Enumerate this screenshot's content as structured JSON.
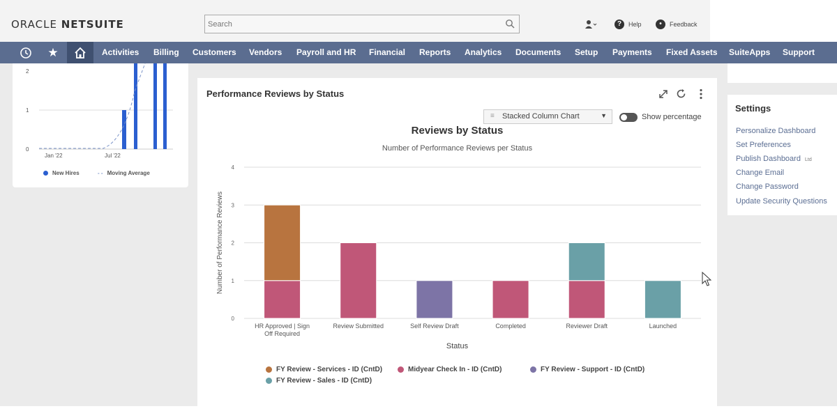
{
  "header": {
    "logo_oracle": "ORACLE",
    "logo_netsuite": "NETSUITE",
    "search_placeholder": "Search",
    "help_label": "Help",
    "feedback_label": "Feedback"
  },
  "nav": {
    "items": [
      "Activities",
      "Billing",
      "Customers",
      "Vendors",
      "Payroll and HR",
      "Financial",
      "Reports",
      "Analytics",
      "Documents",
      "Setup",
      "Payments",
      "Fixed Assets",
      "SuiteApps",
      "Support"
    ]
  },
  "left_card": {
    "y_ticks": [
      "2",
      "1",
      "0"
    ],
    "x_ticks": [
      "Jan '22",
      "Jul '22"
    ],
    "legend": [
      "New Hires",
      "Moving Average"
    ],
    "series_color": "#2b5fd0"
  },
  "portlet": {
    "title": "Performance Reviews by Status",
    "chart_type_select": "Stacked Column Chart",
    "show_percentage_label": "Show percentage"
  },
  "chart_data": {
    "type": "bar",
    "stacked": true,
    "title": "Reviews by Status",
    "subtitle": "Number of Performance Reviews per Status",
    "xlabel": "Status",
    "ylabel": "Number of Performance Reviews",
    "ylim": [
      0,
      4
    ],
    "yticks": [
      0,
      1,
      2,
      3,
      4
    ],
    "grid": true,
    "categories": [
      "HR Approved | Sign Off Required",
      "Review Submitted",
      "Self Review Draft",
      "Completed",
      "Reviewer Draft",
      "Launched"
    ],
    "series": [
      {
        "name": "FY Review - Services - ID (CntD)",
        "color": "#b8743f",
        "values": [
          2,
          0,
          0,
          0,
          0,
          0
        ]
      },
      {
        "name": "Midyear Check In - ID (CntD)",
        "color": "#c05778",
        "values": [
          1,
          2,
          0,
          1,
          1,
          0
        ]
      },
      {
        "name": "FY Review - Support - ID (CntD)",
        "color": "#7d74a6",
        "values": [
          0,
          0,
          1,
          0,
          0,
          0
        ]
      },
      {
        "name": "FY Review - Sales - ID (CntD)",
        "color": "#6aa0a7",
        "values": [
          0,
          0,
          0,
          0,
          1,
          1
        ]
      }
    ],
    "legend_placement": "bottom"
  },
  "settings": {
    "title": "Settings",
    "links": [
      "Personalize Dashboard",
      "Set Preferences",
      "Publish Dashboard",
      "Change Email",
      "Change Password",
      "Update Security Questions"
    ],
    "publish_badge": "Ltd"
  }
}
